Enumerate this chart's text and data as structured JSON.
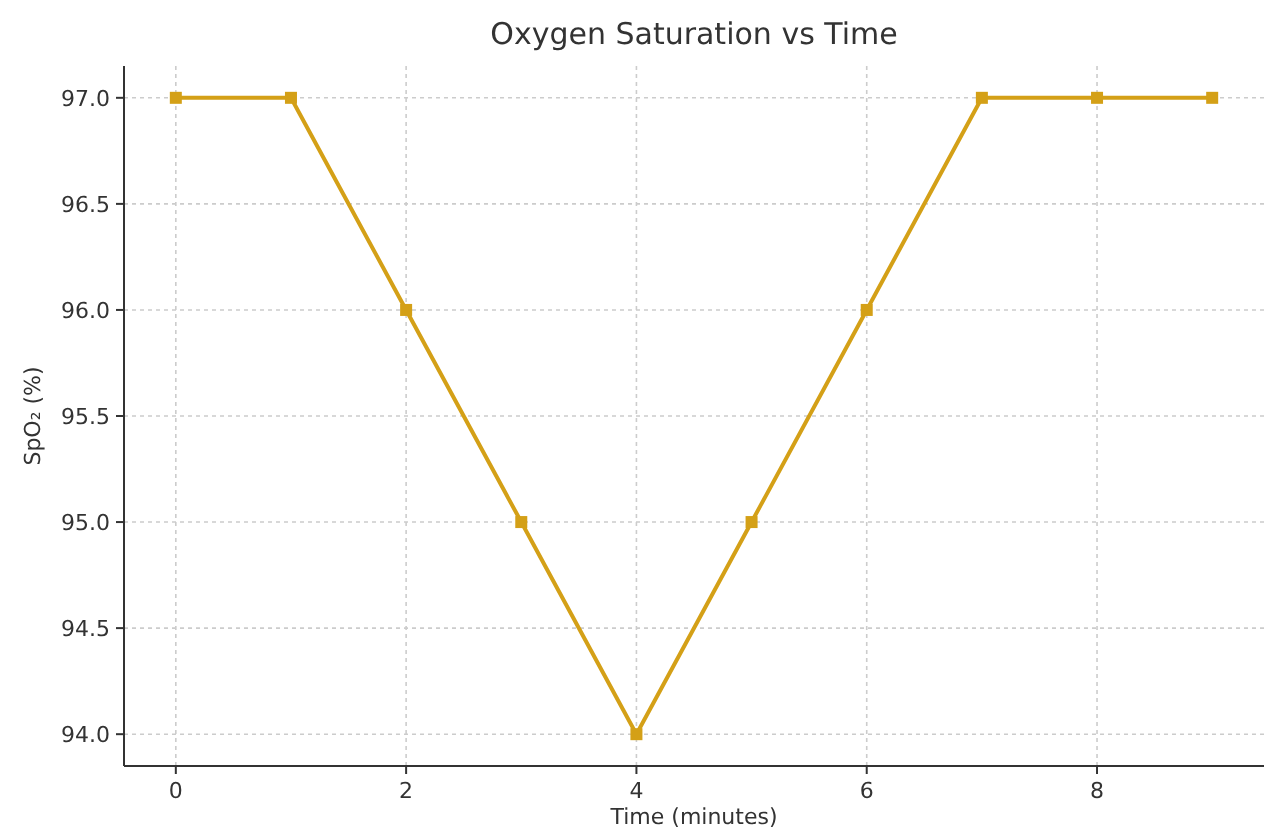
{
  "chart_data": {
    "type": "line",
    "title": "Oxygen Saturation vs Time",
    "xlabel": "Time (minutes)",
    "ylabel": "SpO₂ (%)",
    "x": [
      0,
      1,
      2,
      3,
      4,
      5,
      6,
      7,
      8,
      9
    ],
    "series": [
      {
        "color": "#d4a017",
        "values": [
          97,
          97,
          96,
          95,
          94,
          95,
          96,
          97,
          97,
          97
        ]
      }
    ],
    "xlim": [
      -0.45,
      9.45
    ],
    "xticks": [
      0,
      2,
      4,
      6,
      8
    ],
    "ylim": [
      93.85,
      97.15
    ],
    "yticks": [
      {
        "value": 94,
        "label": "94.0"
      },
      {
        "value": 94.5,
        "label": "94.5"
      },
      {
        "value": 95,
        "label": "95.0"
      },
      {
        "value": 95.5,
        "label": "95.5"
      },
      {
        "value": 96,
        "label": "96.0"
      },
      {
        "value": 96.5,
        "label": "96.5"
      },
      {
        "value": 97,
        "label": "97.0"
      }
    ],
    "grid": true,
    "marker": "square",
    "line_style": "solid"
  }
}
